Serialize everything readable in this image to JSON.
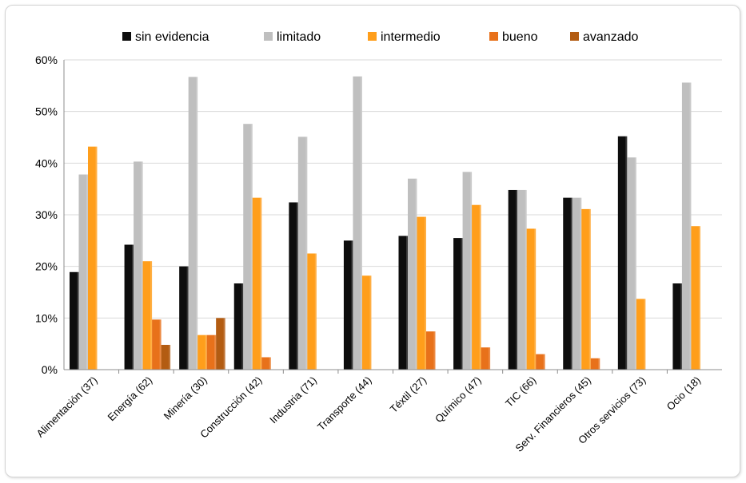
{
  "chart_data": {
    "type": "bar",
    "title": "",
    "xlabel": "",
    "ylabel": "",
    "ylim": [
      0,
      60
    ],
    "yticks": [
      "0%",
      "10%",
      "20%",
      "30%",
      "40%",
      "50%",
      "60%"
    ],
    "grid": true,
    "legend_position": "top",
    "categories": [
      "Alimentación (37)",
      "Energía (62)",
      "Minería (30)",
      "Construcción (42)",
      "Industria (71)",
      "Transporte (44)",
      "Téxtil (27)",
      "Químico (47)",
      "TIC (66)",
      "Serv. Financieros (45)",
      "Otros servicios (73)",
      "Ocio (18)"
    ],
    "series": [
      {
        "name": "sin evidencia",
        "color": "#0d0d0d",
        "values": [
          18.9,
          24.2,
          20.0,
          16.7,
          32.4,
          25.0,
          25.9,
          25.5,
          34.8,
          33.3,
          45.2,
          16.7
        ]
      },
      {
        "name": "limitado",
        "color": "#bfbfbf",
        "values": [
          37.8,
          40.3,
          56.7,
          47.6,
          45.1,
          56.8,
          37.0,
          38.3,
          34.8,
          33.3,
          41.1,
          55.6
        ]
      },
      {
        "name": "intermedio",
        "color": "#ff9e1b",
        "values": [
          43.2,
          21.0,
          6.7,
          33.3,
          22.5,
          18.2,
          29.6,
          31.9,
          27.3,
          31.1,
          13.7,
          27.8
        ]
      },
      {
        "name": "bueno",
        "color": "#e8711a",
        "values": [
          0,
          9.7,
          6.7,
          2.4,
          0,
          0,
          7.4,
          4.3,
          3.0,
          2.2,
          0,
          0
        ]
      },
      {
        "name": "avanzado",
        "color": "#b35c12",
        "values": [
          0,
          4.8,
          10.0,
          0,
          0,
          0,
          0,
          0,
          0,
          0,
          0,
          0
        ]
      }
    ]
  }
}
